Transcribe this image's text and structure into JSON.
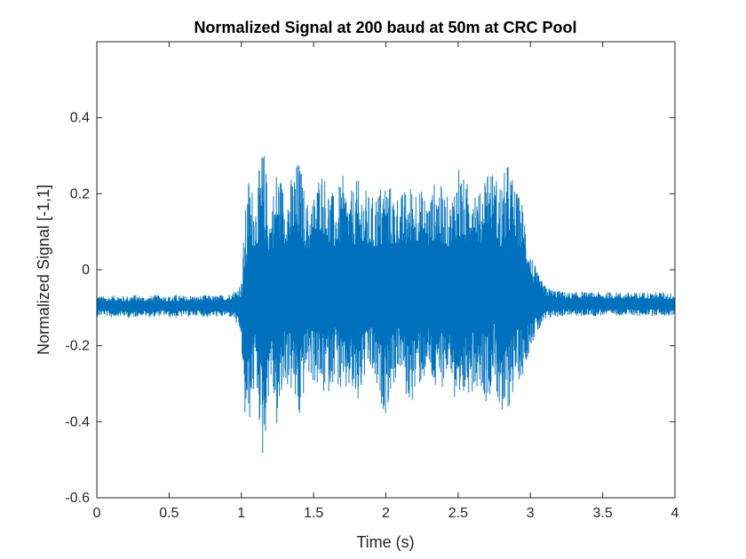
{
  "chart_data": {
    "type": "line",
    "title": "Normalized Signal at 200 baud at 50m at CRC Pool",
    "xlabel": "Time (s)",
    "ylabel": "Normalized Signal [-1,1]",
    "xlim": [
      0,
      4
    ],
    "ylim": [
      -0.6,
      0.6
    ],
    "xticks": [
      0,
      0.5,
      1,
      1.5,
      2,
      2.5,
      3,
      3.5,
      4
    ],
    "xtick_labels": [
      "0",
      "0.5",
      "1",
      "1.5",
      "2",
      "2.5",
      "3",
      "3.5",
      "4"
    ],
    "yticks": [
      -0.6,
      -0.4,
      -0.2,
      0,
      0.2,
      0.4
    ],
    "ytick_labels": [
      "-0.6",
      "-0.4",
      "-0.2",
      "0",
      "0.2",
      "0.4"
    ],
    "grid": false,
    "series": [
      {
        "color": "#0072bd",
        "x": [
          0,
          0.05,
          0.1,
          0.15,
          0.2,
          0.25,
          0.3,
          0.35,
          0.4,
          0.45,
          0.5,
          0.55,
          0.6,
          0.65,
          0.7,
          0.75,
          0.8,
          0.85,
          0.9,
          0.95,
          1.0,
          1.02,
          1.05,
          1.1,
          1.15,
          1.2,
          1.25,
          1.3,
          1.35,
          1.4,
          1.45,
          1.5,
          1.55,
          1.6,
          1.65,
          1.7,
          1.75,
          1.8,
          1.85,
          1.9,
          1.95,
          2.0,
          2.05,
          2.1,
          2.15,
          2.2,
          2.25,
          2.3,
          2.35,
          2.4,
          2.45,
          2.5,
          2.55,
          2.6,
          2.65,
          2.7,
          2.75,
          2.8,
          2.85,
          2.9,
          2.95,
          3.0,
          3.05,
          3.1,
          3.15,
          3.2,
          3.25,
          3.3,
          3.35,
          3.4,
          3.45,
          3.5,
          3.55,
          3.6,
          3.65,
          3.7,
          3.75,
          3.8,
          3.85,
          3.9,
          3.95,
          4.0
        ],
        "upper": [
          -0.065,
          -0.07,
          -0.068,
          -0.066,
          -0.07,
          -0.064,
          -0.068,
          -0.07,
          -0.066,
          -0.067,
          -0.069,
          -0.065,
          -0.068,
          -0.066,
          -0.07,
          -0.066,
          -0.068,
          -0.066,
          -0.065,
          -0.055,
          -0.03,
          0.12,
          0.25,
          0.2,
          0.34,
          0.16,
          0.29,
          0.21,
          0.25,
          0.3,
          0.18,
          0.2,
          0.28,
          0.23,
          0.19,
          0.25,
          0.2,
          0.24,
          0.22,
          0.19,
          0.22,
          0.25,
          0.21,
          0.2,
          0.22,
          0.24,
          0.21,
          0.19,
          0.25,
          0.21,
          0.18,
          0.31,
          0.22,
          0.27,
          0.2,
          0.3,
          0.25,
          0.24,
          0.29,
          0.21,
          0.18,
          0.05,
          -0.01,
          -0.04,
          -0.05,
          -0.055,
          -0.058,
          -0.06,
          -0.055,
          -0.06,
          -0.058,
          -0.06,
          -0.058,
          -0.058,
          -0.06,
          -0.058,
          -0.06,
          -0.058,
          -0.06,
          -0.058,
          -0.06,
          -0.06
        ],
        "lower": [
          -0.125,
          -0.12,
          -0.127,
          -0.122,
          -0.125,
          -0.128,
          -0.12,
          -0.124,
          -0.126,
          -0.121,
          -0.125,
          -0.127,
          -0.122,
          -0.125,
          -0.12,
          -0.126,
          -0.123,
          -0.127,
          -0.122,
          -0.13,
          -0.18,
          -0.4,
          -0.42,
          -0.3,
          -0.52,
          -0.28,
          -0.44,
          -0.3,
          -0.33,
          -0.42,
          -0.28,
          -0.3,
          -0.34,
          -0.33,
          -0.28,
          -0.36,
          -0.32,
          -0.38,
          -0.3,
          -0.28,
          -0.35,
          -0.38,
          -0.31,
          -0.27,
          -0.36,
          -0.34,
          -0.3,
          -0.28,
          -0.35,
          -0.3,
          -0.27,
          -0.48,
          -0.33,
          -0.32,
          -0.3,
          -0.36,
          -0.28,
          -0.43,
          -0.37,
          -0.3,
          -0.28,
          -0.2,
          -0.17,
          -0.14,
          -0.125,
          -0.125,
          -0.12,
          -0.122,
          -0.125,
          -0.12,
          -0.123,
          -0.12,
          -0.124,
          -0.12,
          -0.122,
          -0.12,
          -0.124,
          -0.12,
          -0.122,
          -0.12,
          -0.124,
          -0.12
        ]
      }
    ]
  }
}
